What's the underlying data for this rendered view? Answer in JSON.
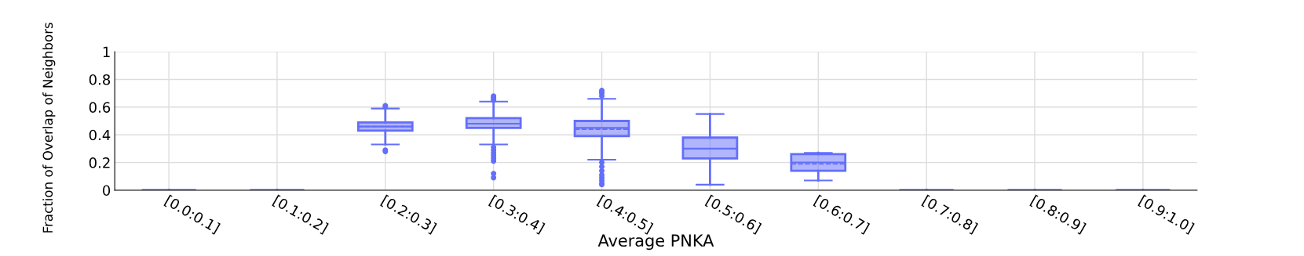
{
  "chart_data": {
    "type": "box",
    "xlabel": "Average PNKA",
    "ylabel": "Fraction of Overlap of Neighbors",
    "categories": [
      "[0.0:0.1]",
      "[0.1:0.2]",
      "[0.2:0.3]",
      "[0.3:0.4]",
      "[0.4:0.5]",
      "[0.5:0.6]",
      "[0.6:0.7]",
      "[0.7:0.8]",
      "[0.8:0.9]",
      "[0.9:1.0]"
    ],
    "series": [
      {
        "color": "#636efa",
        "boxes": [
          {
            "low": 0,
            "q1": 0,
            "median": 0,
            "q3": 0,
            "high": 0
          },
          {
            "low": 0,
            "q1": 0,
            "median": 0,
            "q3": 0,
            "high": 0
          },
          {
            "low": 0.33,
            "q1": 0.43,
            "median": 0.46,
            "q3": 0.49,
            "high": 0.59,
            "mean": 0.46,
            "outliers": [
              0.29,
              0.28,
              0.61,
              0.6
            ]
          },
          {
            "low": 0.33,
            "q1": 0.45,
            "median": 0.48,
            "q3": 0.52,
            "high": 0.64,
            "mean": 0.48,
            "outliers": [
              0.65,
              0.66,
              0.67,
              0.68,
              0.31,
              0.29,
              0.27,
              0.25,
              0.23,
              0.21,
              0.12,
              0.09
            ]
          },
          {
            "low": 0.22,
            "q1": 0.39,
            "median": 0.45,
            "q3": 0.5,
            "high": 0.66,
            "mean": 0.44,
            "outliers": [
              0.68,
              0.7,
              0.71,
              0.72,
              0.2,
              0.17,
              0.14,
              0.11,
              0.09,
              0.07,
              0.05,
              0.04
            ]
          },
          {
            "low": 0.04,
            "q1": 0.23,
            "median": 0.3,
            "q3": 0.38,
            "high": 0.55,
            "mean": 0.3
          },
          {
            "low": 0.07,
            "q1": 0.14,
            "median": 0.2,
            "q3": 0.26,
            "high": 0.27,
            "mean": 0.19
          },
          {
            "low": 0,
            "q1": 0,
            "median": 0,
            "q3": 0,
            "high": 0
          },
          {
            "low": 0,
            "q1": 0,
            "median": 0,
            "q3": 0,
            "high": 0
          },
          {
            "low": 0,
            "q1": 0,
            "median": 0,
            "q3": 0,
            "high": 0
          }
        ]
      }
    ],
    "ylim": [
      0,
      1
    ],
    "yticks": [
      0,
      0.2,
      0.4,
      0.6,
      0.8,
      1
    ],
    "grid": true
  }
}
